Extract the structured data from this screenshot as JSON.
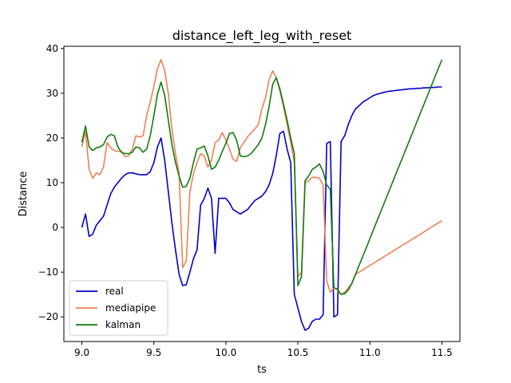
{
  "chart_data": {
    "type": "line",
    "title": "distance_left_leg_with_reset",
    "xlabel": "ts",
    "ylabel": "Distance",
    "xlim": [
      8.875,
      11.625
    ],
    "ylim": [
      -25.5,
      40.5
    ],
    "xticks": [
      9.0,
      9.5,
      10.0,
      10.5,
      11.0,
      11.5
    ],
    "xtick_labels": [
      "9.0",
      "9.5",
      "10.0",
      "10.5",
      "11.0",
      "11.5"
    ],
    "yticks": [
      -20,
      -10,
      0,
      10,
      20,
      30,
      40
    ],
    "ytick_labels": [
      "−20",
      "−10",
      "0",
      "10",
      "20",
      "30",
      "40"
    ],
    "grid": false,
    "legend_position": "lower-left",
    "x": [
      9.0,
      9.025,
      9.05,
      9.075,
      9.1,
      9.125,
      9.15,
      9.175,
      9.2,
      9.225,
      9.25,
      9.275,
      9.3,
      9.325,
      9.35,
      9.375,
      9.4,
      9.425,
      9.45,
      9.475,
      9.5,
      9.525,
      9.55,
      9.575,
      9.6,
      9.625,
      9.65,
      9.675,
      9.7,
      9.725,
      9.75,
      9.775,
      9.8,
      9.825,
      9.85,
      9.875,
      9.9,
      9.925,
      9.95,
      9.975,
      10.0,
      10.025,
      10.05,
      10.075,
      10.1,
      10.125,
      10.15,
      10.175,
      10.2,
      10.225,
      10.25,
      10.275,
      10.3,
      10.325,
      10.35,
      10.375,
      10.4,
      10.425,
      10.45,
      10.475,
      10.5,
      10.525,
      10.55,
      10.575,
      10.6,
      10.625,
      10.65,
      10.675,
      10.7,
      10.725,
      10.75,
      10.775,
      10.8,
      10.825,
      10.85,
      10.875,
      10.9,
      10.925,
      10.95,
      10.975,
      11.0,
      11.025,
      11.05,
      11.075,
      11.1,
      11.125,
      11.15,
      11.175,
      11.2,
      11.225,
      11.25,
      11.275,
      11.3,
      11.325,
      11.35,
      11.375,
      11.4,
      11.425,
      11.45,
      11.475,
      11.5
    ],
    "series": [
      {
        "name": "real",
        "color": "#0000cc",
        "values": [
          0.0,
          3.0,
          -2.0,
          -1.5,
          0.5,
          1.5,
          2.5,
          5.0,
          7.5,
          9.0,
          10.0,
          11.0,
          11.8,
          12.2,
          12.2,
          12.0,
          11.8,
          11.8,
          11.8,
          12.5,
          14.5,
          18.0,
          20.0,
          15.0,
          8.0,
          1.0,
          -5.0,
          -10.5,
          -13.0,
          -12.8,
          -10.0,
          -7.0,
          -5.0,
          5.0,
          6.5,
          8.8,
          6.5,
          -5.8,
          6.5,
          6.5,
          6.5,
          5.5,
          4.0,
          3.5,
          3.0,
          3.5,
          4.0,
          5.0,
          6.0,
          6.5,
          7.0,
          8.0,
          9.5,
          12.0,
          16.0,
          21.0,
          21.5,
          17.5,
          14.5,
          -15.0,
          -18.0,
          -21.0,
          -23.0,
          -22.5,
          -21.0,
          -20.5,
          -20.5,
          -19.5,
          18.8,
          19.2,
          -20.0,
          -19.5,
          19.2,
          20.5,
          23.0,
          25.0,
          26.5,
          27.2,
          28.0,
          28.5,
          29.0,
          29.5,
          29.8,
          30.0,
          30.2,
          30.4,
          30.5,
          30.6,
          30.7,
          30.8,
          30.9,
          31.0,
          31.0,
          31.1,
          31.1,
          31.2,
          31.2,
          31.3,
          31.3,
          31.4,
          31.4
        ]
      },
      {
        "name": "mediapipe",
        "color": "#ef8054",
        "values": [
          18.0,
          21.5,
          13.0,
          11.0,
          12.2,
          11.8,
          13.5,
          19.0,
          17.8,
          17.2,
          17.0,
          17.0,
          15.8,
          16.0,
          17.5,
          20.5,
          20.2,
          20.5,
          25.0,
          28.0,
          31.5,
          35.5,
          37.5,
          35.0,
          30.0,
          22.0,
          16.5,
          12.0,
          -9.0,
          -7.5,
          8.0,
          12.0,
          14.5,
          16.5,
          16.0,
          13.5,
          15.0,
          19.0,
          19.5,
          21.2,
          19.5,
          17.5,
          15.2,
          14.8,
          17.8,
          19.0,
          20.2,
          21.2,
          22.0,
          23.0,
          26.5,
          29.0,
          33.0,
          35.0,
          33.5,
          30.5,
          27.0,
          23.0,
          19.0,
          14.5,
          -11.0,
          -10.0,
          10.0,
          10.5,
          11.2,
          11.2,
          11.0,
          9.5,
          -12.0,
          -14.5,
          -13.5,
          -14.0,
          -15.0,
          -14.5,
          -13.5,
          -12.5,
          -10.5,
          -10.0,
          -9.5,
          -9.0,
          -8.5,
          -8.0,
          -7.5,
          -7.0,
          -6.5,
          -6.0,
          -5.5,
          -5.0,
          -4.5,
          -4.0,
          -3.5,
          -3.0,
          -2.5,
          -2.0,
          -1.5,
          -1.0,
          -0.5,
          0.0,
          0.5,
          1.0,
          1.5
        ]
      },
      {
        "name": "kalman",
        "color": "#107c10",
        "values": [
          19.0,
          22.7,
          18.0,
          17.2,
          17.8,
          18.0,
          18.5,
          20.2,
          20.8,
          20.5,
          18.0,
          16.8,
          16.5,
          16.5,
          16.8,
          18.0,
          17.8,
          16.8,
          17.5,
          20.5,
          25.0,
          29.8,
          32.5,
          29.5,
          24.0,
          18.5,
          14.5,
          11.5,
          9.0,
          9.2,
          11.0,
          14.5,
          17.5,
          17.8,
          18.2,
          16.0,
          13.0,
          13.5,
          15.0,
          17.0,
          18.8,
          21.0,
          21.2,
          19.5,
          16.0,
          15.8,
          16.0,
          16.5,
          17.5,
          18.5,
          20.0,
          23.0,
          27.0,
          32.0,
          33.5,
          31.0,
          27.5,
          24.0,
          20.0,
          16.5,
          -13.0,
          -11.0,
          10.5,
          11.5,
          13.0,
          13.5,
          14.2,
          12.5,
          9.5,
          8.5,
          -13.5,
          -13.8,
          -15.0,
          -14.8,
          -14.0,
          -12.5,
          -10.5,
          -8.5,
          -6.5,
          -4.5,
          -2.5,
          -0.5,
          1.5,
          3.5,
          5.5,
          7.5,
          9.5,
          11.5,
          13.5,
          15.5,
          17.5,
          19.5,
          21.5,
          23.5,
          25.5,
          27.5,
          29.5,
          31.5,
          33.5,
          35.5,
          37.5
        ]
      }
    ]
  }
}
